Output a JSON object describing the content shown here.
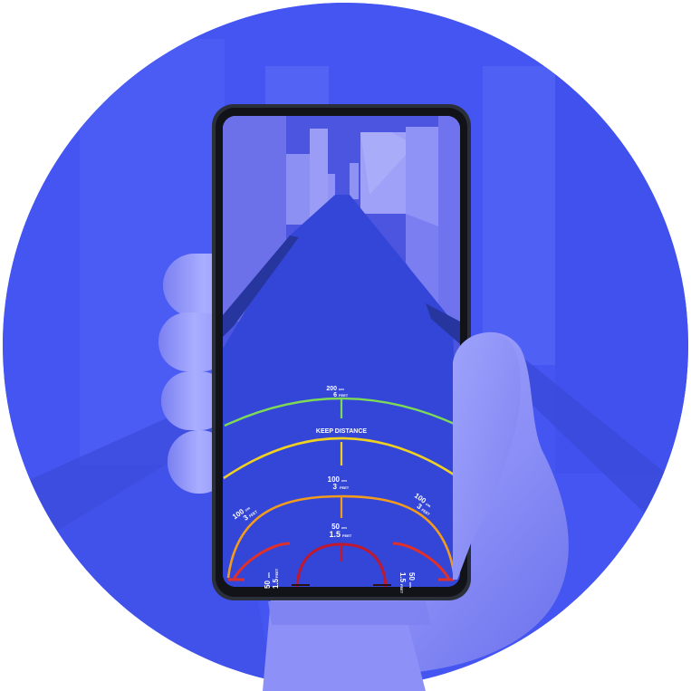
{
  "colors": {
    "background_circle": "#4455f2",
    "road": "#3446d8",
    "buildings": "#7f83f0",
    "phone_frame": "#2b2f3a",
    "hand": "#8c8ff6",
    "arc_far": "#7ed957",
    "arc_keep": "#f0d020",
    "arc_mid": "#f29b1c",
    "arc_near": "#e0302a",
    "arc_closest": "#c0192d"
  },
  "hud": {
    "ring_200": {
      "value": "200",
      "unit": "cm",
      "feet_value": "6",
      "feet_unit": "FEET"
    },
    "keep_distance_label": "KEEP DISTANCE",
    "ring_100": {
      "value": "100",
      "unit": "cm",
      "feet_value": "3",
      "feet_unit": "FEET"
    },
    "ring_100_left": {
      "value": "100",
      "unit": "cm",
      "feet_value": "3",
      "feet_unit": "FEET"
    },
    "ring_100_right": {
      "value": "100",
      "unit": "cm",
      "feet_value": "3",
      "feet_unit": "FEET"
    },
    "ring_50": {
      "value": "50",
      "unit": "cm",
      "feet_value": "1.5",
      "feet_unit": "FEET"
    },
    "ring_50_left": {
      "value": "50",
      "unit": "cm",
      "feet_value": "1.5",
      "feet_unit": "FEET"
    },
    "ring_50_right": {
      "value": "50",
      "unit": "cm",
      "feet_value": "1.5",
      "feet_unit": "FEET"
    }
  },
  "icons": {
    "hand": "hand-icon",
    "phone": "smartphone-icon"
  }
}
